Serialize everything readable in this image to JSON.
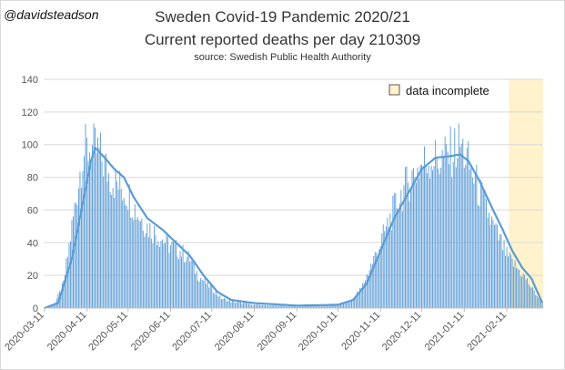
{
  "header": {
    "author": "@davidsteadson",
    "title": "Sweden Covid-19 Pandemic 2020/21",
    "subtitle": "Current reported deaths per day 210309",
    "source": "source: Swedish Public Health Authority"
  },
  "colors": {
    "bar": "#5b9bd5",
    "line": "#5b9bd5",
    "incomplete_fill": "#fff2cc",
    "grid": "#d9d9d9",
    "axis": "#bfbfbf"
  },
  "chart_data": {
    "type": "bar",
    "title": "Sweden Covid-19 Pandemic 2020/21",
    "subtitle": "Current reported deaths per day 210309",
    "xlabel": "",
    "ylabel": "",
    "ylim": [
      0,
      140
    ],
    "yticks": [
      0,
      20,
      40,
      60,
      80,
      100,
      120,
      140
    ],
    "grid": true,
    "x_start": "2020-03-11",
    "x_end": "2021-03-09",
    "xtick_labels": [
      "2020-03-11",
      "2020-04-11",
      "2020-05-11",
      "2020-06-11",
      "2020-07-11",
      "2020-08-11",
      "2020-09-11",
      "2020-10-11",
      "2020-11-11",
      "2020-12-11",
      "2021-01-11",
      "2021-02-11"
    ],
    "legend": {
      "label": "data incomplete",
      "placement": "top-right"
    },
    "incomplete_range": [
      "2021-02-13",
      "2021-03-09"
    ],
    "series": [
      {
        "name": "Deaths per day",
        "type": "bar",
        "keypoints": [
          [
            "2020-03-11",
            0
          ],
          [
            "2020-03-18",
            2
          ],
          [
            "2020-03-25",
            15
          ],
          [
            "2020-04-01",
            55
          ],
          [
            "2020-04-08",
            95
          ],
          [
            "2020-04-13",
            98
          ],
          [
            "2020-04-20",
            95
          ],
          [
            "2020-04-27",
            82
          ],
          [
            "2020-05-04",
            75
          ],
          [
            "2020-05-11",
            70
          ],
          [
            "2020-05-18",
            58
          ],
          [
            "2020-05-25",
            50
          ],
          [
            "2020-06-01",
            45
          ],
          [
            "2020-06-11",
            38
          ],
          [
            "2020-06-18",
            35
          ],
          [
            "2020-06-25",
            30
          ],
          [
            "2020-07-01",
            20
          ],
          [
            "2020-07-11",
            12
          ],
          [
            "2020-07-18",
            6
          ],
          [
            "2020-07-25",
            4
          ],
          [
            "2020-08-11",
            2
          ],
          [
            "2020-09-11",
            1
          ],
          [
            "2020-10-11",
            2
          ],
          [
            "2020-10-20",
            4
          ],
          [
            "2020-10-28",
            12
          ],
          [
            "2020-11-05",
            28
          ],
          [
            "2020-11-11",
            40
          ],
          [
            "2020-11-18",
            55
          ],
          [
            "2020-11-25",
            68
          ],
          [
            "2020-12-03",
            80
          ],
          [
            "2020-12-11",
            88
          ],
          [
            "2020-12-18",
            92
          ],
          [
            "2020-12-25",
            90
          ],
          [
            "2021-01-01",
            95
          ],
          [
            "2021-01-08",
            100
          ],
          [
            "2021-01-11",
            95
          ],
          [
            "2021-01-18",
            80
          ],
          [
            "2021-01-25",
            65
          ],
          [
            "2021-02-01",
            50
          ],
          [
            "2021-02-08",
            38
          ],
          [
            "2021-02-11",
            32
          ],
          [
            "2021-02-18",
            25
          ],
          [
            "2021-02-25",
            18
          ],
          [
            "2021-03-03",
            10
          ],
          [
            "2021-03-09",
            3
          ]
        ]
      },
      {
        "name": "7-day average",
        "type": "line",
        "keypoints": [
          [
            "2020-03-11",
            0
          ],
          [
            "2020-03-21",
            3
          ],
          [
            "2020-03-31",
            30
          ],
          [
            "2020-04-07",
            60
          ],
          [
            "2020-04-14",
            90
          ],
          [
            "2020-04-17",
            98
          ],
          [
            "2020-04-24",
            92
          ],
          [
            "2020-05-01",
            85
          ],
          [
            "2020-05-08",
            80
          ],
          [
            "2020-05-15",
            68
          ],
          [
            "2020-05-25",
            55
          ],
          [
            "2020-06-05",
            48
          ],
          [
            "2020-06-15",
            40
          ],
          [
            "2020-06-25",
            32
          ],
          [
            "2020-07-05",
            20
          ],
          [
            "2020-07-15",
            10
          ],
          [
            "2020-07-25",
            5
          ],
          [
            "2020-08-11",
            3
          ],
          [
            "2020-09-11",
            1.5
          ],
          [
            "2020-10-11",
            2
          ],
          [
            "2020-10-22",
            5
          ],
          [
            "2020-11-01",
            15
          ],
          [
            "2020-11-11",
            35
          ],
          [
            "2020-11-21",
            55
          ],
          [
            "2020-12-01",
            70
          ],
          [
            "2020-12-11",
            85
          ],
          [
            "2020-12-21",
            92
          ],
          [
            "2021-01-01",
            93
          ],
          [
            "2021-01-08",
            94
          ],
          [
            "2021-01-14",
            90
          ],
          [
            "2021-01-22",
            78
          ],
          [
            "2021-02-01",
            60
          ],
          [
            "2021-02-08",
            48
          ],
          [
            "2021-02-15",
            35
          ],
          [
            "2021-02-22",
            25
          ],
          [
            "2021-03-01",
            18
          ],
          [
            "2021-03-09",
            3
          ]
        ]
      }
    ]
  }
}
